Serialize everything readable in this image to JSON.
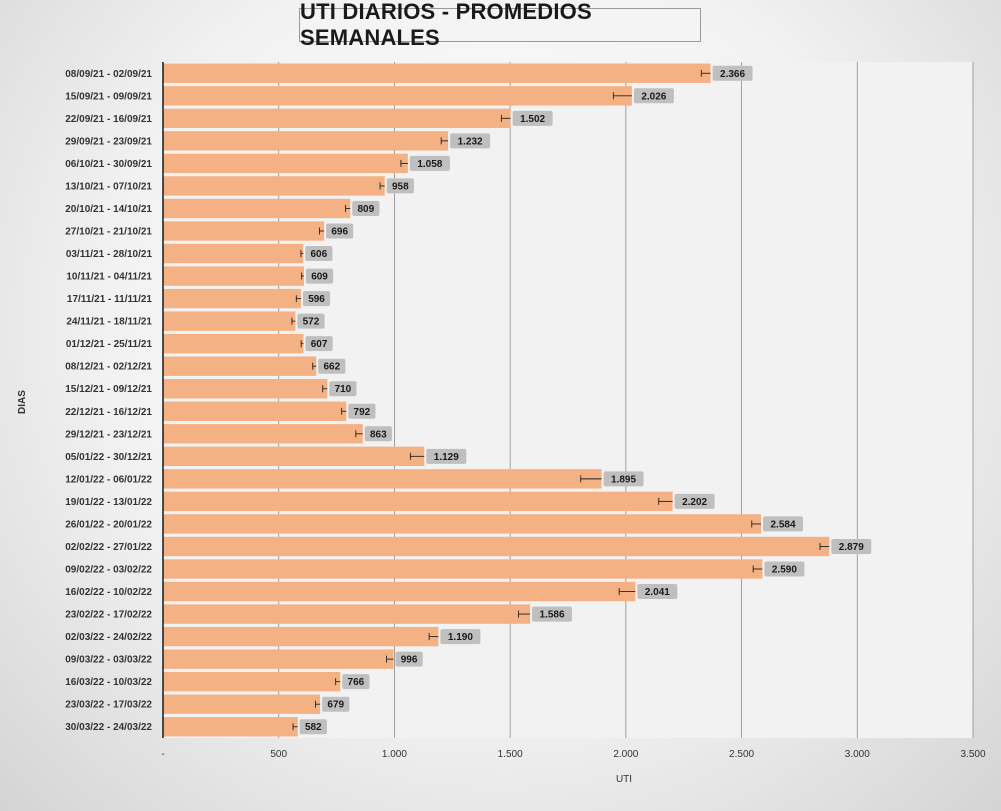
{
  "chart_data": {
    "type": "bar",
    "orientation": "horizontal",
    "title": "UTI DIARIOS - PROMEDIOS SEMANALES",
    "xlabel": "UTI",
    "ylabel": "DIAS",
    "xlim": [
      0,
      3500
    ],
    "x_ticks": [
      "-",
      "500",
      "1.000",
      "1.500",
      "2.000",
      "2.500",
      "3.000",
      "3.500"
    ],
    "x_tick_values": [
      0,
      500,
      1000,
      1500,
      2000,
      2500,
      3000,
      3500
    ],
    "grid": "vertical",
    "error_bars": true,
    "bar_color": "#f4b183",
    "categories": [
      "08/09/21 - 02/09/21",
      "15/09/21 - 09/09/21",
      "22/09/21 - 16/09/21",
      "29/09/21 - 23/09/21",
      "06/10/21 - 30/09/21",
      "13/10/21 - 07/10/21",
      "20/10/21 - 14/10/21",
      "27/10/21 - 21/10/21",
      "03/11/21 - 28/10/21",
      "10/11/21 - 04/11/21",
      "17/11/21 - 11/11/21",
      "24/11/21 - 18/11/21",
      "01/12/21 - 25/11/21",
      "08/12/21 - 02/12/21",
      "15/12/21 - 09/12/21",
      "22/12/21 - 16/12/21",
      "29/12/21 - 23/12/21",
      "05/01/22 - 30/12/21",
      "12/01/22 - 06/01/22",
      "19/01/22 - 13/01/22",
      "26/01/22 - 20/01/22",
      "02/02/22 - 27/01/22",
      "09/02/22 - 03/02/22",
      "16/02/22 - 10/02/22",
      "23/02/22 - 17/02/22",
      "02/03/22 - 24/02/22",
      "09/03/22 - 03/03/22",
      "16/03/22 - 10/03/22",
      "23/03/22 - 17/03/22",
      "30/03/22 - 24/03/22"
    ],
    "values": [
      2366,
      2026,
      1502,
      1232,
      1058,
      958,
      809,
      696,
      606,
      609,
      596,
      572,
      607,
      662,
      710,
      792,
      863,
      1129,
      1895,
      2202,
      2584,
      2879,
      2590,
      2041,
      1586,
      1190,
      996,
      766,
      679,
      582
    ],
    "value_labels": [
      "2.366",
      "2.026",
      "1.502",
      "1.232",
      "1.058",
      "958",
      "809",
      "696",
      "606",
      "609",
      "596",
      "572",
      "607",
      "662",
      "710",
      "792",
      "863",
      "1.129",
      "1.895",
      "2.202",
      "2.584",
      "2.879",
      "2.590",
      "2.041",
      "1.586",
      "1.190",
      "996",
      "766",
      "679",
      "582"
    ],
    "error_minus": [
      40,
      80,
      40,
      30,
      30,
      20,
      20,
      20,
      10,
      10,
      20,
      15,
      10,
      15,
      20,
      20,
      30,
      60,
      90,
      60,
      40,
      40,
      40,
      70,
      50,
      40,
      30,
      20,
      20,
      20
    ]
  }
}
